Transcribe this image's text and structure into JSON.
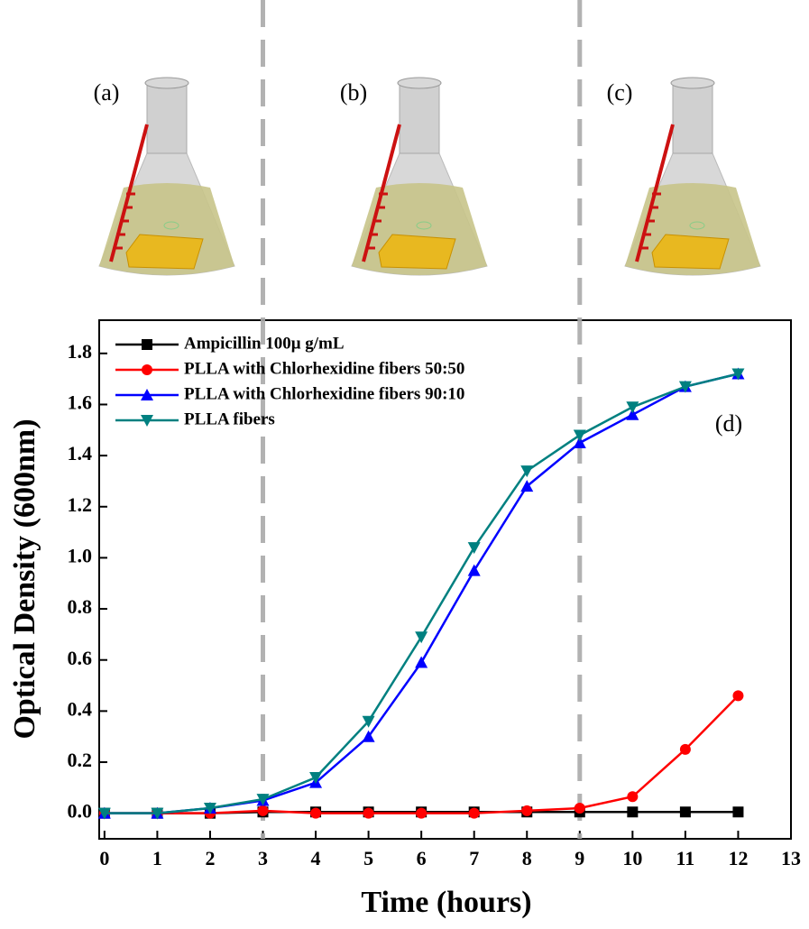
{
  "chart_data": {
    "type": "line",
    "panel_labels": [
      "(a)",
      "(b)",
      "(c)"
    ],
    "annotation": "(d)",
    "x_label": "Time (hours)",
    "y_label": "Optical Density (600nm)",
    "x": [
      0,
      1,
      2,
      3,
      4,
      5,
      6,
      7,
      8,
      9,
      10,
      11,
      12
    ],
    "series": [
      {
        "name": "Ampicillin 100μ g/mL",
        "color": "#000000",
        "marker": "square",
        "values": [
          0,
          0,
          0,
          0.005,
          0.005,
          0.005,
          0.005,
          0.005,
          0.005,
          0.005,
          0.005,
          0.005,
          0.005
        ]
      },
      {
        "name": "PLLA with Chlorhexidine fibers 50:50",
        "color": "#ff0000",
        "marker": "circle",
        "values": [
          0,
          0,
          0,
          0.01,
          0,
          0,
          0,
          0,
          0.01,
          0.02,
          0.065,
          0.25,
          0.46
        ]
      },
      {
        "name": "PLLA with Chlorhexidine fibers 90:10",
        "color": "#0000ff",
        "marker": "triangle-up",
        "values": [
          0,
          0,
          0.02,
          0.05,
          0.12,
          0.3,
          0.59,
          0.95,
          1.28,
          1.45,
          1.56,
          1.67,
          1.72
        ]
      },
      {
        "name": "PLLA fibers",
        "color": "#008080",
        "marker": "triangle-down",
        "values": [
          0,
          0,
          0.02,
          0.055,
          0.14,
          0.36,
          0.69,
          1.04,
          1.34,
          1.48,
          1.59,
          1.67,
          1.72
        ]
      }
    ],
    "vlines": [
      3,
      9
    ],
    "xlim": [
      -0.1,
      13
    ],
    "xticks": [
      0,
      1,
      2,
      3,
      4,
      5,
      6,
      7,
      8,
      9,
      10,
      11,
      12,
      13
    ],
    "ylim": [
      -0.1,
      1.93
    ],
    "yticks": [
      {
        "value": 0,
        "label": "0.0"
      },
      {
        "value": 0.2,
        "label": "0.2"
      },
      {
        "value": 0.4,
        "label": "0.4"
      },
      {
        "value": 0.6,
        "label": "0.6"
      },
      {
        "value": 0.8,
        "label": "0.8"
      },
      {
        "value": 1,
        "label": "1.0"
      },
      {
        "value": 1.2,
        "label": "1.2"
      },
      {
        "value": 1.4,
        "label": "1.4"
      },
      {
        "value": 1.6,
        "label": "1.6"
      },
      {
        "value": 1.8,
        "label": "1.8"
      }
    ],
    "legend": "upper left"
  }
}
